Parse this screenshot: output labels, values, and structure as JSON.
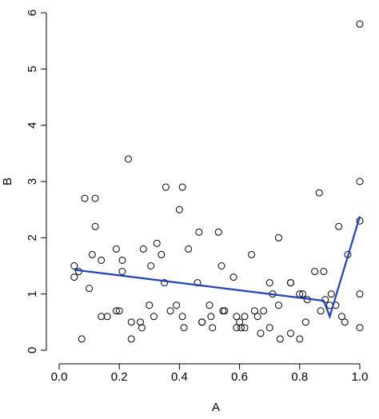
{
  "chart_data": {
    "type": "scatter",
    "x_label": "A",
    "y_label": "B",
    "xlim": [
      0,
      1
    ],
    "ylim": [
      0,
      6
    ],
    "xticks": [
      {
        "value": 0,
        "label": "0.0"
      },
      0.2,
      0.4,
      0.6,
      0.8,
      {
        "value": 1,
        "label": "1.0"
      }
    ],
    "yticks": [
      0,
      1,
      2,
      3,
      4,
      5,
      6
    ],
    "point_color": "#000000",
    "x": [
      0.05,
      0.05,
      0.065,
      0.075,
      0.085,
      0.1,
      0.11,
      0.12,
      0.12,
      0.14,
      0.14,
      0.16,
      0.19,
      0.19,
      0.2,
      0.21,
      0.21,
      0.23,
      0.24,
      0.24,
      0.27,
      0.275,
      0.28,
      0.3,
      0.305,
      0.315,
      0.325,
      0.34,
      0.35,
      0.355,
      0.37,
      0.39,
      0.4,
      0.41,
      0.41,
      0.415,
      0.43,
      0.46,
      0.465,
      0.475,
      0.475,
      0.5,
      0.505,
      0.51,
      0.53,
      0.54,
      0.545,
      0.55,
      0.58,
      0.59,
      0.59,
      0.6,
      0.605,
      0.617,
      0.617,
      0.64,
      0.65,
      0.66,
      0.67,
      0.68,
      0.7,
      0.7,
      0.71,
      0.73,
      0.73,
      0.735,
      0.77,
      0.77,
      0.77,
      0.8,
      0.8,
      0.81,
      0.82,
      0.825,
      0.85,
      0.865,
      0.87,
      0.88,
      0.885,
      0.9,
      0.905,
      0.92,
      0.93,
      0.94,
      0.95,
      0.96,
      1.0,
      1.0,
      1.0,
      1.0,
      1.0
    ],
    "y": [
      1.5,
      1.3,
      1.4,
      0.2,
      2.7,
      1.1,
      1.7,
      2.7,
      2.2,
      1.6,
      0.6,
      0.6,
      0.7,
      1.8,
      0.7,
      1.6,
      1.4,
      3.4,
      0.5,
      0.2,
      0.5,
      0.4,
      1.8,
      0.8,
      1.5,
      0.6,
      1.9,
      1.7,
      1.2,
      2.9,
      0.7,
      0.8,
      2.5,
      2.9,
      0.6,
      0.4,
      1.8,
      1.2,
      2.1,
      0.5,
      0.5,
      0.8,
      0.6,
      0.4,
      2.1,
      1.5,
      0.7,
      0.7,
      1.3,
      0.6,
      0.4,
      0.5,
      0.4,
      0.4,
      0.6,
      1.7,
      0.7,
      0.6,
      0.3,
      0.7,
      1.2,
      0.4,
      1.0,
      2.0,
      0.8,
      0.2,
      1.2,
      1.2,
      0.3,
      1.0,
      0.2,
      1.0,
      0.5,
      0.9,
      1.4,
      2.8,
      0.7,
      1.4,
      0.9,
      0.8,
      1.0,
      0.8,
      2.2,
      0.6,
      0.5,
      1.7,
      5.8,
      3.0,
      2.3,
      1.0,
      0.4
    ],
    "line": {
      "color": "#1a3fd4",
      "x": [
        0.05,
        0.88,
        0.9,
        1.0
      ],
      "y": [
        1.43,
        0.88,
        0.6,
        2.38
      ]
    }
  }
}
